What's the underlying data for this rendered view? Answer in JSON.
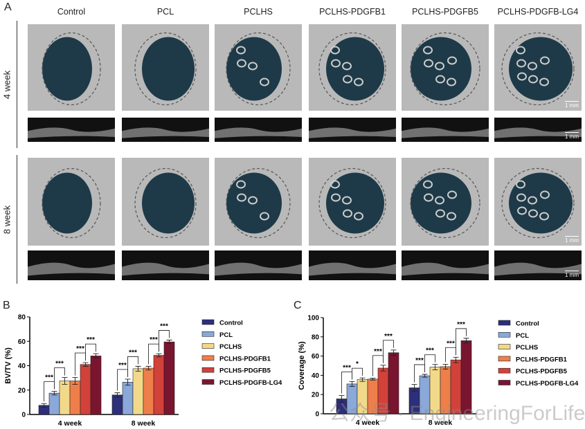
{
  "panel_a": {
    "letter": "A",
    "columns": [
      "Control",
      "PCL",
      "PCLHS",
      "PCLHS-PDGFB1",
      "PCLHS-PDGFB5",
      "PCLHS-PDGFB-LG4"
    ],
    "rows": [
      "4 week",
      "8 week"
    ],
    "scale_bar": "1 mm",
    "colors": {
      "defect": "#1e3a48",
      "bone": "#bdbdbd",
      "strip": "#111111"
    }
  },
  "watermark": "公众号 · EngineeringForLife",
  "chart_data": [
    {
      "panel": "B",
      "type": "bar",
      "ylabel": "BV/TV (%)",
      "xlabel": "",
      "ylim": [
        0,
        80
      ],
      "yticks": [
        0,
        20,
        40,
        60,
        80
      ],
      "categories": [
        "4 week",
        "8 week"
      ],
      "legend_position": "right",
      "series": [
        {
          "name": "Control",
          "color": "#2e2f7a",
          "values": [
            7.5,
            16
          ],
          "errors": [
            1.5,
            1.8
          ]
        },
        {
          "name": "PCL",
          "color": "#8aa8d8",
          "values": [
            17.5,
            26.5
          ],
          "errors": [
            1.5,
            2.5
          ]
        },
        {
          "name": "PCLHS",
          "color": "#f2d98a",
          "values": [
            27.5,
            37.5
          ],
          "errors": [
            2.8,
            2
          ]
        },
        {
          "name": "PCLHS-PDGFB1",
          "color": "#ee7f4a",
          "values": [
            27.5,
            38
          ],
          "errors": [
            2.8,
            1.5
          ]
        },
        {
          "name": "PCLHS-PDGFB5",
          "color": "#d2413a",
          "values": [
            41,
            48.5
          ],
          "errors": [
            1.5,
            1.3
          ]
        },
        {
          "name": "PCLHS-PDGFB-LG4",
          "color": "#7a1530",
          "values": [
            48,
            59.5
          ],
          "errors": [
            1.8,
            1.5
          ]
        }
      ],
      "significance": [
        {
          "category": "4 week",
          "pair": [
            0,
            1
          ],
          "label": "***"
        },
        {
          "category": "4 week",
          "pair": [
            1,
            2
          ],
          "label": "***"
        },
        {
          "category": "4 week",
          "pair": [
            3,
            4
          ],
          "label": "***"
        },
        {
          "category": "4 week",
          "pair": [
            4,
            5
          ],
          "label": "***"
        },
        {
          "category": "8 week",
          "pair": [
            0,
            1
          ],
          "label": "***"
        },
        {
          "category": "8 week",
          "pair": [
            1,
            2
          ],
          "label": "***"
        },
        {
          "category": "8 week",
          "pair": [
            3,
            4
          ],
          "label": "***"
        },
        {
          "category": "8 week",
          "pair": [
            4,
            5
          ],
          "label": "***"
        }
      ]
    },
    {
      "panel": "C",
      "type": "bar",
      "ylabel": "Coverage (%)",
      "xlabel": "",
      "ylim": [
        0,
        100
      ],
      "yticks": [
        0,
        20,
        40,
        60,
        80,
        100
      ],
      "categories": [
        "4 week",
        "8 week"
      ],
      "legend_position": "right",
      "series": [
        {
          "name": "Control",
          "color": "#2e2f7a",
          "values": [
            15.5,
            27
          ],
          "errors": [
            3.5,
            3.5
          ]
        },
        {
          "name": "PCL",
          "color": "#8aa8d8",
          "values": [
            31,
            39.5
          ],
          "errors": [
            2.5,
            1.5
          ]
        },
        {
          "name": "PCLHS",
          "color": "#f2d98a",
          "values": [
            35.5,
            48.5
          ],
          "errors": [
            1.8,
            2.8
          ]
        },
        {
          "name": "PCLHS-PDGFB1",
          "color": "#ee7f4a",
          "values": [
            36,
            49
          ],
          "errors": [
            1,
            2.5
          ]
        },
        {
          "name": "PCLHS-PDGFB5",
          "color": "#d2413a",
          "values": [
            47.5,
            56
          ],
          "errors": [
            3,
            2.8
          ]
        },
        {
          "name": "PCLHS-PDGFB-LG4",
          "color": "#7a1530",
          "values": [
            63.5,
            76
          ],
          "errors": [
            2.8,
            2.5
          ]
        }
      ],
      "significance": [
        {
          "category": "4 week",
          "pair": [
            0,
            1
          ],
          "label": "***"
        },
        {
          "category": "4 week",
          "pair": [
            1,
            2
          ],
          "label": "*"
        },
        {
          "category": "4 week",
          "pair": [
            3,
            4
          ],
          "label": "***"
        },
        {
          "category": "4 week",
          "pair": [
            4,
            5
          ],
          "label": "***"
        },
        {
          "category": "8 week",
          "pair": [
            0,
            1
          ],
          "label": "***"
        },
        {
          "category": "8 week",
          "pair": [
            1,
            2
          ],
          "label": "***"
        },
        {
          "category": "8 week",
          "pair": [
            3,
            4
          ],
          "label": "***"
        },
        {
          "category": "8 week",
          "pair": [
            4,
            5
          ],
          "label": "***"
        }
      ]
    }
  ]
}
